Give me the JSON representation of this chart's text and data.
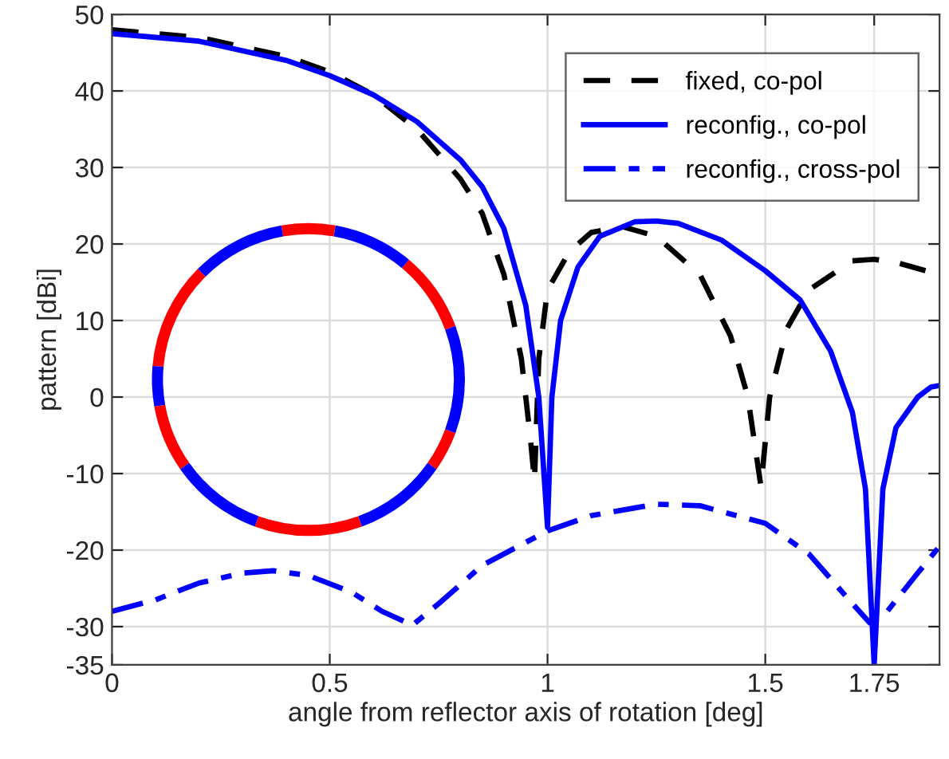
{
  "chart_data": {
    "type": "line",
    "xlabel": "angle from reflector axis of rotation [deg]",
    "ylabel": "pattern [dBi]",
    "xlim": [
      0,
      1.9
    ],
    "ylim": [
      -35,
      50
    ],
    "xticks": [
      0,
      0.5,
      1,
      1.5,
      1.75
    ],
    "yticks": [
      -35,
      -30,
      -20,
      -10,
      0,
      10,
      20,
      30,
      40,
      50
    ],
    "grid": true,
    "legend": "top right",
    "marker": "none",
    "series": [
      {
        "name": "fixed, co-pol",
        "color": "#000000",
        "line_style": "dashed",
        "x": [
          0,
          0.2,
          0.4,
          0.5,
          0.6,
          0.7,
          0.8,
          0.85,
          0.9,
          0.94,
          0.96,
          0.97,
          0.98,
          1.0,
          1.05,
          1.1,
          1.17,
          1.25,
          1.35,
          1.42,
          1.46,
          1.49,
          1.51,
          1.55,
          1.6,
          1.7,
          1.75,
          1.8,
          1.9
        ],
        "values": [
          48,
          47,
          44.5,
          42.5,
          39.5,
          35,
          28.5,
          24,
          16,
          5,
          -5,
          -11,
          5,
          14,
          19,
          21.5,
          22.3,
          21,
          16,
          8,
          0,
          -11.7,
          0,
          9,
          14,
          17.8,
          18,
          17.6,
          16
        ]
      },
      {
        "name": "reconfig., co-pol",
        "color": "#0000ff",
        "line_style": "solid",
        "x": [
          0,
          0.2,
          0.4,
          0.5,
          0.6,
          0.7,
          0.8,
          0.85,
          0.9,
          0.95,
          0.98,
          1.0,
          1.01,
          1.03,
          1.07,
          1.12,
          1.2,
          1.25,
          1.3,
          1.4,
          1.5,
          1.58,
          1.65,
          1.7,
          1.73,
          1.75,
          1.77,
          1.8,
          1.85,
          1.88,
          1.9
        ],
        "values": [
          47.5,
          46.5,
          44,
          42,
          39.5,
          36,
          31,
          27.5,
          22,
          12,
          0,
          -17,
          0,
          10,
          17,
          21,
          22.9,
          23,
          22.7,
          20.5,
          16.5,
          12.7,
          6,
          -2,
          -12,
          -35,
          -12,
          -4,
          0,
          1.3,
          1.5
        ]
      },
      {
        "name": "reconfig., cross-pol",
        "color": "#0000ff",
        "line_style": "dashdot",
        "x": [
          0,
          0.1,
          0.2,
          0.3,
          0.37,
          0.45,
          0.55,
          0.62,
          0.69,
          0.75,
          0.85,
          1.0,
          1.1,
          1.25,
          1.35,
          1.5,
          1.6,
          1.7,
          1.74,
          1.78,
          1.85,
          1.9
        ],
        "values": [
          -28,
          -26.5,
          -24.3,
          -23,
          -22.7,
          -23.3,
          -25.5,
          -28,
          -29.8,
          -27,
          -22,
          -17.5,
          -15.5,
          -14,
          -14.2,
          -16.5,
          -20.5,
          -27,
          -29.5,
          -28,
          -23,
          -19.5
        ]
      }
    ]
  }
}
